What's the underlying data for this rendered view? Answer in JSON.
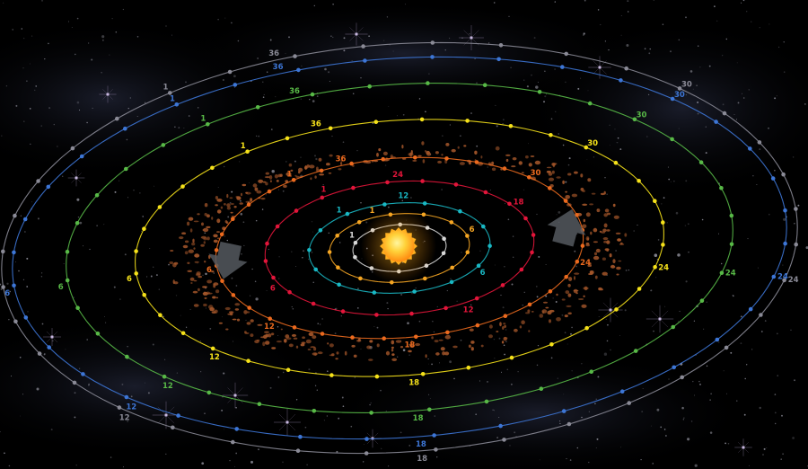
{
  "scene": {
    "background": "#000000",
    "star_color": "#9a9aa6",
    "sun": {
      "core": "#ffe14a",
      "edge": "#ff9a1c",
      "rays": "#ffb01f"
    },
    "asteroid_color": "#a4562a",
    "arrow_color": "#55595f"
  },
  "orbits": [
    {
      "name": "orbit-1",
      "color": "#d8d8d8",
      "dots": 10,
      "labels": [
        "1"
      ]
    },
    {
      "name": "orbit-2",
      "color": "#f6a623",
      "dots": 13,
      "labels": [
        "1",
        "6"
      ]
    },
    {
      "name": "orbit-3",
      "color": "#19b8c4",
      "dots": 14,
      "labels": [
        "1",
        "12",
        "6"
      ]
    },
    {
      "name": "orbit-4",
      "color": "#e2153a",
      "dots": 24,
      "labels": [
        "1",
        "24",
        "18",
        "6",
        "12"
      ]
    },
    {
      "name": "orbit-5",
      "color": "#ec6a1e",
      "dots": 36,
      "labels": [
        "1",
        "36",
        "30",
        "24",
        "6",
        "12",
        "18"
      ]
    },
    {
      "name": "orbit-6",
      "color": "#f6e21a",
      "dots": 36,
      "labels": [
        "1",
        "36",
        "30",
        "24",
        "6",
        "12",
        "18"
      ]
    },
    {
      "name": "orbit-7",
      "color": "#58b947",
      "dots": 36,
      "labels": [
        "1",
        "36",
        "30",
        "24",
        "6",
        "12",
        "18"
      ]
    },
    {
      "name": "orbit-8",
      "color": "#3d76d6",
      "dots": 36,
      "labels": [
        "1",
        "36",
        "30",
        "24",
        "6",
        "12",
        "18"
      ]
    },
    {
      "name": "orbit-9",
      "color": "#8a8a96",
      "dots": 36,
      "labels": [
        "1",
        "36",
        "30",
        "24",
        "6",
        "12",
        "18"
      ]
    }
  ]
}
